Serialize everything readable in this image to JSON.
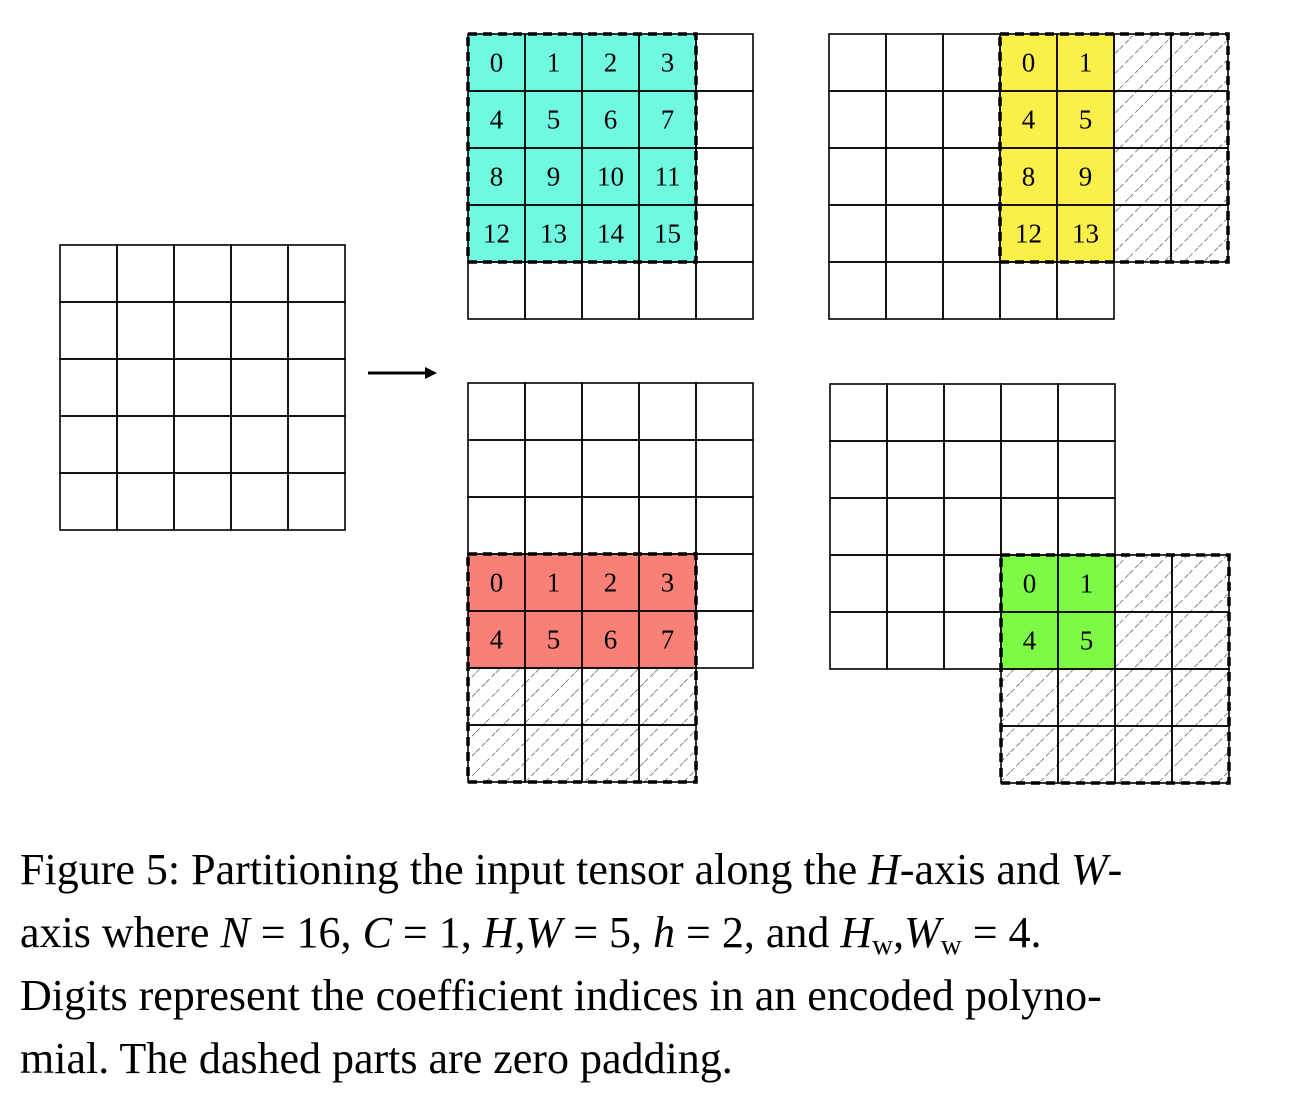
{
  "figure": {
    "input_grid": {
      "rows": 5,
      "cols": 5
    },
    "arrow": "right-arrow",
    "partitions": [
      {
        "id": "top-left",
        "color": "#6ff9e0",
        "cell_labels": [
          "0",
          "1",
          "2",
          "3",
          "4",
          "5",
          "6",
          "7",
          "8",
          "9",
          "10",
          "11",
          "12",
          "13",
          "14",
          "15"
        ]
      },
      {
        "id": "top-right",
        "color": "#fbf04a",
        "cell_labels": [
          "0",
          "1",
          "4",
          "5",
          "8",
          "9",
          "12",
          "13"
        ]
      },
      {
        "id": "bottom-left",
        "color": "#f98077",
        "cell_labels": [
          "0",
          "1",
          "2",
          "3",
          "4",
          "5",
          "6",
          "7"
        ]
      },
      {
        "id": "bottom-right",
        "color": "#7cfa45",
        "cell_labels": [
          "0",
          "1",
          "4",
          "5"
        ]
      }
    ]
  },
  "caption": {
    "label": "Figure 5:",
    "l1_a": "Partitioning the input tensor along the",
    "var_H": "H",
    "l1_b": "-axis and",
    "var_W": "W",
    "l1_c": "-",
    "l2_a": "axis where",
    "var_N": "N",
    "eq_16": "= 16,",
    "var_C": "C",
    "eq_1": "= 1,",
    "var_H2": "H",
    "comma": ",",
    "var_W2": "W",
    "eq_5": "= 5,",
    "var_h": "h",
    "eq_2": "= 2,",
    "and": "and",
    "var_Hw": "H",
    "sub_w1": "w",
    "comma2": ",",
    "var_Ww": "W",
    "sub_w2": "w",
    "eq_4": "= 4.",
    "l3": "Digits represent the coefficient indices in an encoded polyno-",
    "l4": "mial. The dashed parts are zero padding."
  }
}
